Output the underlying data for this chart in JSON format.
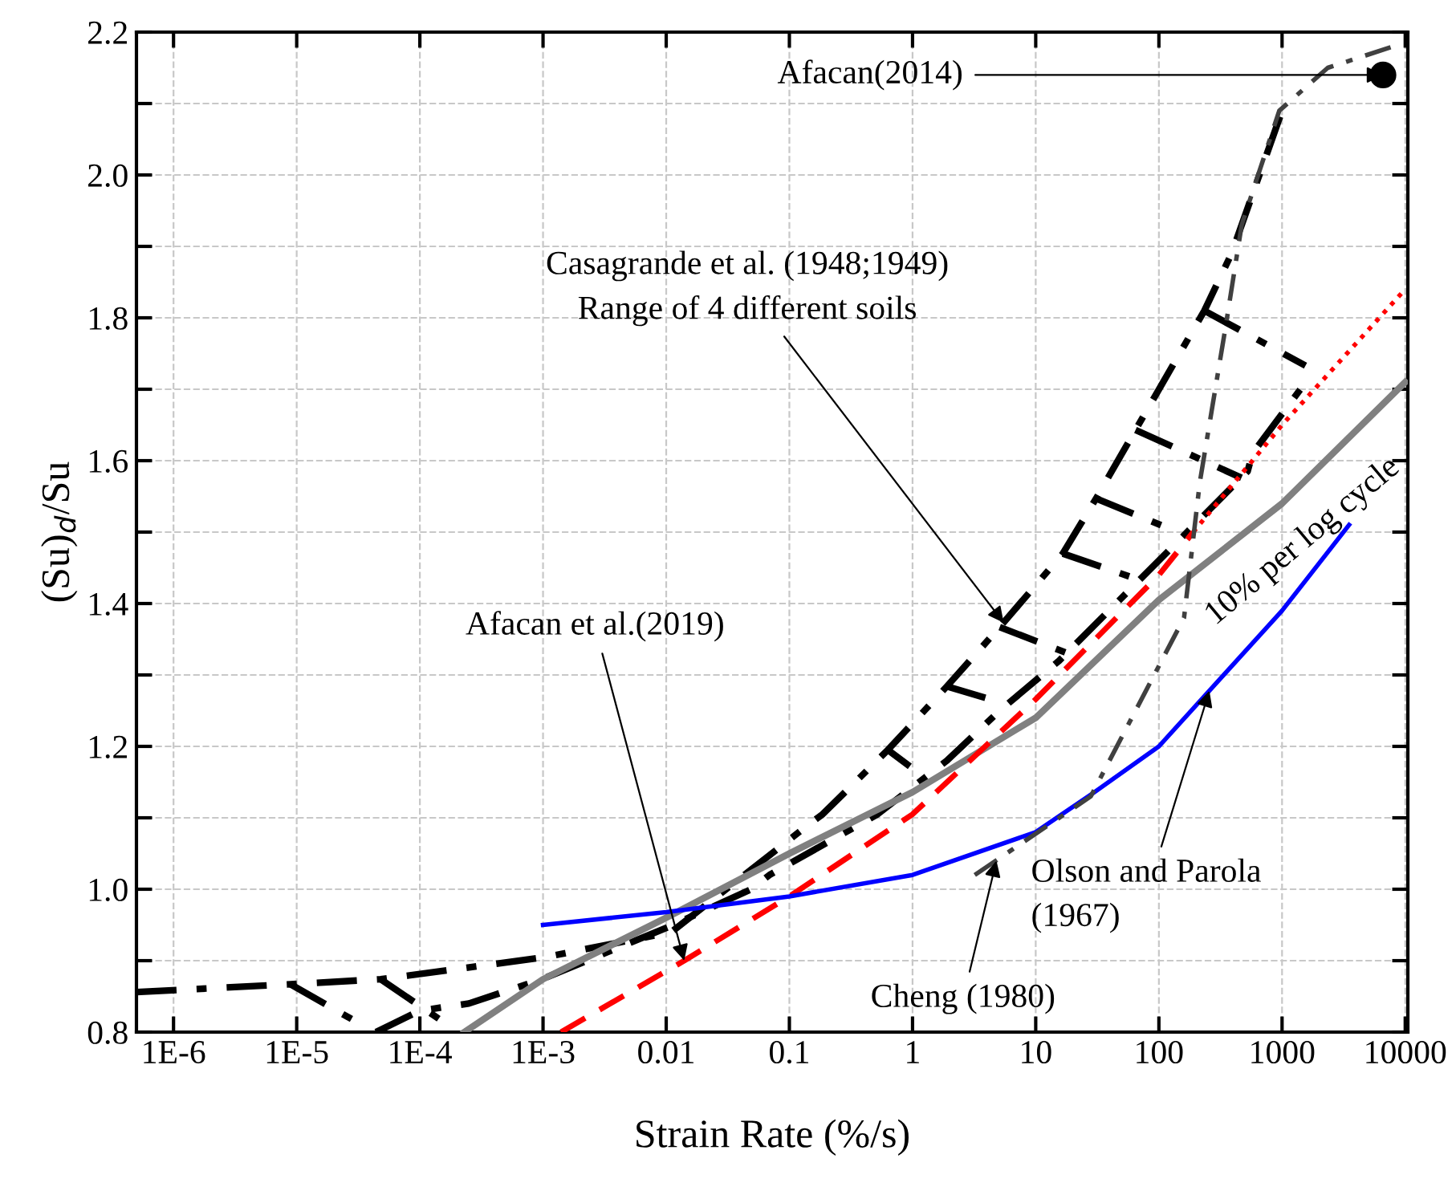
{
  "chart_data": {
    "type": "line",
    "xlabel": "Strain Rate (%/s)",
    "ylabel": "(Su)$_{d}$/Su",
    "log": "x",
    "grid": true,
    "xlim": [
      5e-07,
      10500
    ],
    "ylim": [
      0.8,
      2.2
    ],
    "xticks": [
      {
        "value": 1e-06,
        "label": "1E-6"
      },
      {
        "value": 1e-05,
        "label": "1E-5"
      },
      {
        "value": 0.0001,
        "label": "1E-4"
      },
      {
        "value": 0.001,
        "label": "1E-3"
      },
      0.01,
      0.1,
      1,
      10,
      100,
      1000,
      10000
    ],
    "yticks": [
      0.8,
      {
        "value": 0.9,
        "label": null
      },
      {
        "value": 1.0,
        "label": "1.0"
      },
      {
        "value": 1.1,
        "label": null
      },
      1.2,
      {
        "value": 1.3,
        "label": null
      },
      1.4,
      {
        "value": 1.5,
        "label": null
      },
      1.6,
      {
        "value": 1.7,
        "label": null
      },
      1.8,
      {
        "value": 1.9,
        "label": null
      },
      {
        "value": 2.0,
        "label": "2.0"
      },
      {
        "value": 2.1,
        "label": null
      },
      2.2
    ],
    "series": [
      {
        "color": "#000000",
        "line_style": "dashdot",
        "x": [
          5e-07,
          8.9e-06,
          4.8e-05,
          0.00105,
          0.011,
          0.135,
          0.186,
          0.63,
          1.9,
          5.1,
          16.6,
          30.9,
          64.6,
          234,
          389,
          1050
        ],
        "values": [
          0.856,
          0.867,
          0.874,
          0.905,
          0.94,
          1.087,
          1.105,
          1.195,
          1.284,
          1.367,
          1.47,
          1.547,
          1.643,
          1.81,
          1.89,
          2.1
        ]
      },
      {
        "color": "#000000",
        "line_style": "dashdot",
        "x": [
          4.4e-05,
          0.0001,
          0.00025,
          0.00098,
          0.0107,
          0.049,
          0.069,
          0.52,
          1.9,
          5.1,
          15.5,
          525,
          575,
          1410
        ],
        "values": [
          0.8,
          0.83,
          0.84,
          0.874,
          0.948,
          1.0,
          1.02,
          1.105,
          1.18,
          1.25,
          1.32,
          1.585,
          1.61,
          1.7
        ]
      },
      {
        "color": "#000000",
        "line_style": "dashdot",
        "x": [
          8.9e-06,
          3.3e-05,
          null,
          4.8e-05,
          0.00015,
          null,
          0.63,
          0.95,
          null,
          1.9,
          5.1,
          null,
          5.1,
          19,
          null,
          16.6,
          78,
          null,
          30.9,
          117,
          null,
          64.6,
          468,
          null,
          234,
          1550
        ],
        "values": [
          0.867,
          0.811,
          null,
          0.874,
          0.816,
          null,
          1.195,
          1.172,
          null,
          1.284,
          1.262,
          null,
          1.367,
          1.329,
          null,
          1.47,
          1.43,
          null,
          1.547,
          1.506,
          null,
          1.643,
          1.576,
          null,
          1.81,
          1.733
        ]
      },
      {
        "color": "#808080",
        "line_style": "solid",
        "x": [
          0.00023,
          0.001,
          0.01,
          0.1,
          1,
          10,
          100,
          1000,
          10000
        ],
        "values": [
          0.8,
          0.874,
          0.96,
          1.05,
          1.136,
          1.24,
          1.405,
          1.54,
          1.71
        ]
      },
      {
        "color": "#ff0000",
        "line_style": "dashed",
        "x": [
          0.0014,
          0.014,
          0.1,
          1,
          10,
          100,
          190
        ],
        "values": [
          0.8,
          0.9,
          0.99,
          1.105,
          1.266,
          1.44,
          1.5
        ]
      },
      {
        "color": "#ff0000",
        "line_style": "dotted",
        "x": [
          190,
          1000,
          10000
        ],
        "values": [
          1.5,
          1.65,
          1.84
        ]
      },
      {
        "color": "#0000ff",
        "line_style": "solid",
        "x": [
          0.001,
          0.01,
          0.1,
          1,
          10,
          30,
          100,
          1000,
          3500
        ],
        "values": [
          0.95,
          0.968,
          0.99,
          1.02,
          1.08,
          1.136,
          1.2,
          1.39,
          1.51
        ]
      },
      {
        "color": "#404040",
        "line_style": "dashdot",
        "x": [
          3.2,
          28,
          160,
          215,
          350,
          470,
          950,
          2350,
          8000
        ],
        "values": [
          1.02,
          1.13,
          1.38,
          1.57,
          1.79,
          1.93,
          2.09,
          2.15,
          2.18
        ]
      },
      {
        "type": "scatter",
        "marker": "circle",
        "color": "#000000",
        "x": [
          6600
        ],
        "values": [
          2.14
        ]
      }
    ],
    "annotations": [
      {
        "text": "Afacan(2014)",
        "x": 6600,
        "y": 2.14
      },
      {
        "text": "Casagrande et al. (1948;1949)\nRange of 4 different soils",
        "x": 5.5,
        "y": 1.373
      },
      {
        "text": "Afacan et al.(2019)",
        "x": 0.014,
        "y": 0.9
      },
      {
        "text": "Olson and Parola\n(1967)",
        "x": 257,
        "y": 1.278
      },
      {
        "text": "Cheng (1980)",
        "x": 4.8,
        "y": 1.04
      },
      {
        "text": "10% per log cycle",
        "x": 1200,
        "y": 1.555
      }
    ]
  }
}
